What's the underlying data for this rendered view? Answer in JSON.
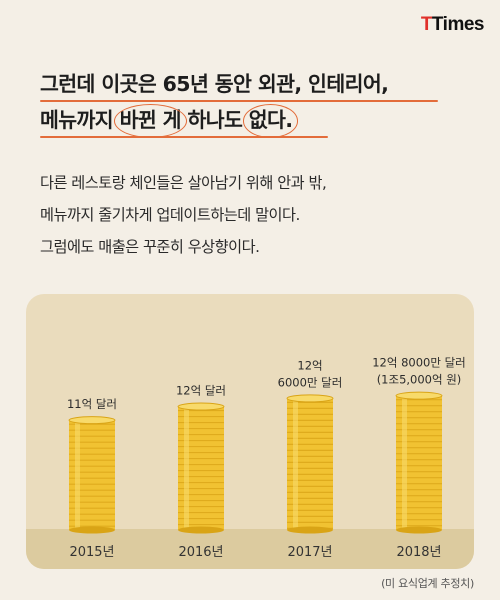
{
  "brand": {
    "logo_mark": "T",
    "logo_text": "Times"
  },
  "headline": {
    "line1": "그런데 이곳은 65년 동안 외관, 인테리어,",
    "line2_a": "메뉴까지 ",
    "line2_b": "바뀐 게",
    "line2_c": " 하나도 ",
    "line2_d": "없다."
  },
  "body": {
    "lines": [
      "다른 레스토랑 체인들은 살아남기 위해 안과 밖,",
      "메뉴까지 줄기차게 업데이트하는데 말이다.",
      "그럼에도 매출은 꾸준히 우상향이다."
    ]
  },
  "chart_data": {
    "type": "bar",
    "categories": [
      "2015년",
      "2016년",
      "2017년",
      "2018년"
    ],
    "values": [
      1100000000,
      1200000000,
      1260000000,
      1280000000
    ],
    "unit": "USD",
    "data_labels": [
      [
        "11억 달러"
      ],
      [
        "12억 달러"
      ],
      [
        "12억",
        "6000만 달러"
      ],
      [
        "12억 8000만 달러",
        "(1조5,000억 원)"
      ]
    ],
    "style": "coin stacks",
    "colors": {
      "coin": "#f1c232",
      "coin_dark": "#d9a416",
      "coin_light": "#f8da6a"
    }
  },
  "source": "(미 요식업계 추정치)"
}
